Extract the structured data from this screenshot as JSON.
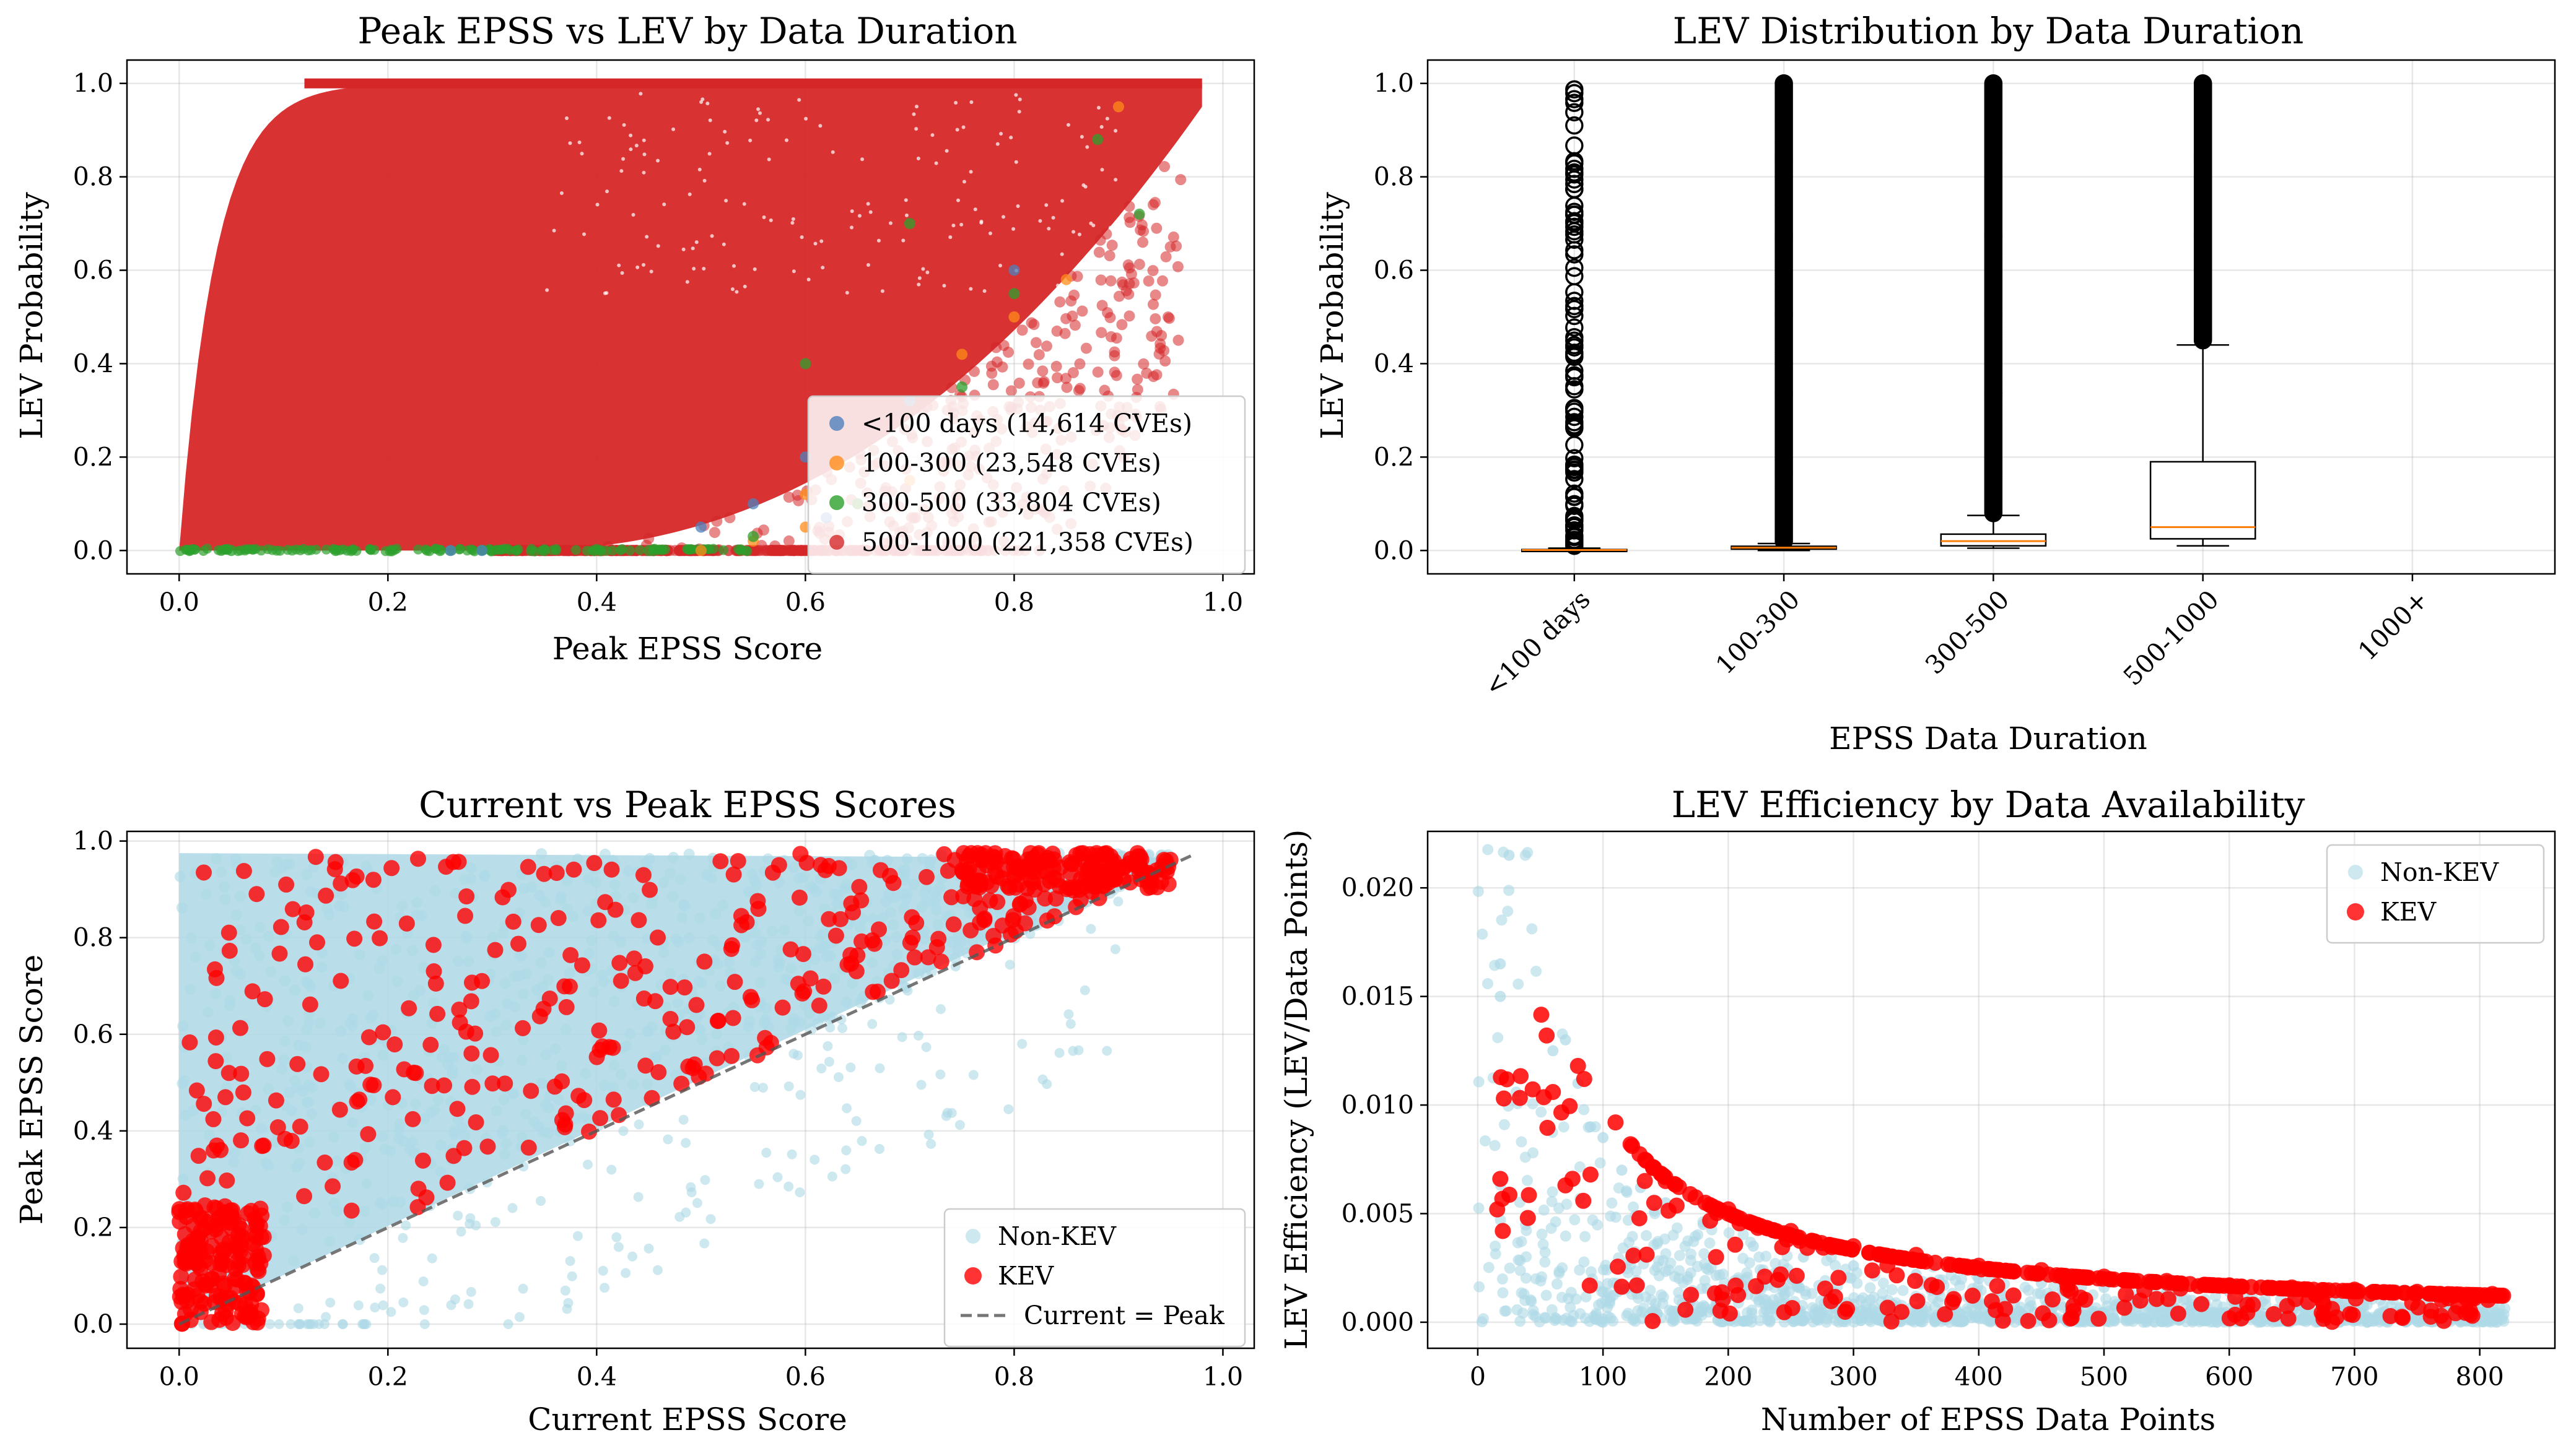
{
  "chart_data": [
    {
      "type": "scatter",
      "title": "Peak EPSS vs LEV by Data Duration",
      "xlabel": "Peak EPSS Score",
      "ylabel": "LEV Probability",
      "xlim": [
        -0.05,
        1.03
      ],
      "ylim": [
        -0.05,
        1.05
      ],
      "xticks": [
        "0.0",
        "0.2",
        "0.4",
        "0.6",
        "0.8",
        "1.0"
      ],
      "yticks": [
        "0.0",
        "0.2",
        "0.4",
        "0.6",
        "0.8",
        "1.0"
      ],
      "grid": true,
      "legend": "lower-right",
      "series": [
        {
          "name": "<100 days (14,614 CVEs)",
          "color": "#4f81bd",
          "points": [
            [
              0.26,
              0.0
            ],
            [
              0.29,
              0.0
            ],
            [
              0.55,
              0.1
            ],
            [
              0.6,
              0.2
            ],
            [
              0.62,
              0.07
            ],
            [
              0.7,
              0.32
            ],
            [
              0.5,
              0.05
            ],
            [
              0.8,
              0.6
            ]
          ]
        },
        {
          "name": "100-300 (23,548 CVEs)",
          "color": "#ff8c1a",
          "points": [
            [
              0.55,
              0.02
            ],
            [
              0.6,
              0.05
            ],
            [
              0.65,
              0.1
            ],
            [
              0.7,
              0.15
            ],
            [
              0.75,
              0.42
            ],
            [
              0.8,
              0.5
            ],
            [
              0.85,
              0.58
            ],
            [
              0.9,
              0.95
            ],
            [
              0.5,
              0.0
            ],
            [
              0.6,
              0.12
            ]
          ]
        },
        {
          "name": "300-500 (33,804 CVEs)",
          "color": "#2ca02c",
          "points": [
            [
              0.05,
              0.0
            ],
            [
              0.15,
              0.0
            ],
            [
              0.25,
              0.0
            ],
            [
              0.35,
              0.0
            ],
            [
              0.45,
              0.0
            ],
            [
              0.55,
              0.03
            ],
            [
              0.65,
              0.1
            ],
            [
              0.75,
              0.35
            ],
            [
              0.8,
              0.55
            ],
            [
              0.88,
              0.88
            ],
            [
              0.92,
              0.72
            ],
            [
              0.7,
              0.7
            ],
            [
              0.6,
              0.4
            ]
          ]
        },
        {
          "name": "500-1000 (221,358 CVEs)",
          "color": "#d62728",
          "points": []
        }
      ]
    },
    {
      "type": "box",
      "title": "LEV Distribution by Data Duration",
      "xlabel": "EPSS Data Duration",
      "ylabel": "LEV Probability",
      "ylim": [
        -0.05,
        1.05
      ],
      "categories": [
        "<100 days",
        "100-300",
        "300-500",
        "500-1000",
        "1000+"
      ],
      "yticks": [
        "0.0",
        "0.2",
        "0.4",
        "0.6",
        "0.8",
        "1.0"
      ],
      "boxes": [
        {
          "q1": 0.0,
          "median": 0.001,
          "q3": 0.002,
          "whisker_low": 0.0,
          "whisker_high": 0.005,
          "outliers_from": 0.01,
          "outliers_to": 0.99
        },
        {
          "q1": 0.003,
          "median": 0.006,
          "q3": 0.009,
          "whisker_low": 0.0,
          "whisker_high": 0.015,
          "outliers_from": 0.02,
          "outliers_to": 1.0
        },
        {
          "q1": 0.01,
          "median": 0.02,
          "q3": 0.035,
          "whisker_low": 0.005,
          "whisker_high": 0.075,
          "outliers_from": 0.08,
          "outliers_to": 1.0
        },
        {
          "q1": 0.025,
          "median": 0.05,
          "q3": 0.19,
          "whisker_low": 0.01,
          "whisker_high": 0.44,
          "outliers_from": 0.45,
          "outliers_to": 1.0
        },
        null
      ]
    },
    {
      "type": "scatter",
      "title": "Current vs Peak EPSS Scores",
      "xlabel": "Current EPSS Score",
      "ylabel": "Peak EPSS Score",
      "xlim": [
        -0.05,
        1.03
      ],
      "ylim": [
        -0.05,
        1.02
      ],
      "xticks": [
        "0.0",
        "0.2",
        "0.4",
        "0.6",
        "0.8",
        "1.0"
      ],
      "yticks": [
        "0.0",
        "0.2",
        "0.4",
        "0.6",
        "0.8",
        "1.0"
      ],
      "grid": true,
      "legend": "lower-right",
      "series": [
        {
          "name": "Non-KEV",
          "color": "#add8e6"
        },
        {
          "name": "KEV",
          "color": "#ff0000"
        },
        {
          "name": "Current = Peak",
          "color": "#555555",
          "line": [
            [
              0.0,
              0.0
            ],
            [
              0.97,
              0.97
            ]
          ]
        }
      ]
    },
    {
      "type": "scatter",
      "title": "LEV Efficiency by Data Availability",
      "xlabel": "Number of EPSS Data Points",
      "ylabel": "LEV Efficiency (LEV/Data Points)",
      "xlim": [
        -40,
        860
      ],
      "ylim": [
        -0.0012,
        0.0226
      ],
      "xticks": [
        "0",
        "100",
        "200",
        "300",
        "400",
        "500",
        "600",
        "700",
        "800"
      ],
      "yticks": [
        "0.000",
        "0.005",
        "0.010",
        "0.015",
        "0.020"
      ],
      "grid": true,
      "legend": "upper-right",
      "series": [
        {
          "name": "Non-KEV",
          "color": "#add8e6",
          "points": [
            [
              25,
              0.0215
            ],
            [
              18,
              0.0165
            ],
            [
              18,
              0.015
            ],
            [
              60,
              0.0125
            ],
            [
              70,
              0.013
            ],
            [
              80,
              0.011
            ],
            [
              90,
              0.009
            ],
            [
              100,
              0.0085
            ],
            [
              115,
              0.007
            ],
            [
              130,
              0.0062
            ],
            [
              150,
              0.0055
            ],
            [
              180,
              0.0045
            ],
            [
              220,
              0.0035
            ],
            [
              260,
              0.003
            ],
            [
              300,
              0.0026
            ],
            [
              350,
              0.0022
            ],
            [
              400,
              0.002
            ],
            [
              450,
              0.0018
            ],
            [
              500,
              0.0016
            ],
            [
              550,
              0.0015
            ],
            [
              600,
              0.0014
            ],
            [
              650,
              0.0013
            ],
            [
              700,
              0.0012
            ],
            [
              750,
              0.0011
            ],
            [
              800,
              0.001
            ]
          ]
        },
        {
          "name": "KEV",
          "color": "#ff0000",
          "points": [
            [
              55,
              0.0132
            ],
            [
              60,
              0.0106
            ],
            [
              80,
              0.0118
            ],
            [
              85,
              0.0112
            ],
            [
              110,
              0.0092
            ],
            [
              18,
              0.0066
            ],
            [
              20,
              0.0042
            ],
            [
              40,
              0.0048
            ],
            [
              70,
              0.0063
            ],
            [
              90,
              0.0068
            ],
            [
              140,
              0.0071
            ],
            [
              150,
              0.0065
            ],
            [
              200,
              0.0052
            ],
            [
              250,
              0.0042
            ],
            [
              300,
              0.0035
            ],
            [
              350,
              0.0031
            ],
            [
              400,
              0.0026
            ],
            [
              450,
              0.0024
            ],
            [
              500,
              0.0021
            ],
            [
              550,
              0.0019
            ],
            [
              600,
              0.0017
            ],
            [
              650,
              0.0016
            ],
            [
              700,
              0.0015
            ],
            [
              750,
              0.0014
            ],
            [
              810,
              0.0013
            ]
          ]
        }
      ]
    }
  ]
}
